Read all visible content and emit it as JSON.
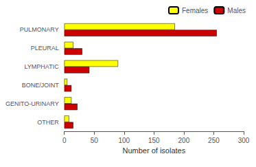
{
  "chart_data": {
    "type": "bar",
    "orientation": "horizontal",
    "categories": [
      "OTHER",
      "GENITO-URINARY",
      "BONE/JOINT",
      "LYMPHATIC",
      "PLEURAL",
      "PULMONARY"
    ],
    "series": [
      {
        "name": "Females",
        "color": "#ffff00",
        "values": [
          8,
          12,
          5,
          90,
          15,
          185
        ]
      },
      {
        "name": "Males",
        "color": "#cc0000",
        "values": [
          15,
          22,
          12,
          42,
          30,
          255
        ]
      }
    ],
    "xlabel": "Number of isolates",
    "xlim": [
      0,
      300
    ],
    "xticks": [
      0,
      50,
      100,
      150,
      200,
      250,
      300
    ],
    "grid": false,
    "legend": "upper right"
  }
}
